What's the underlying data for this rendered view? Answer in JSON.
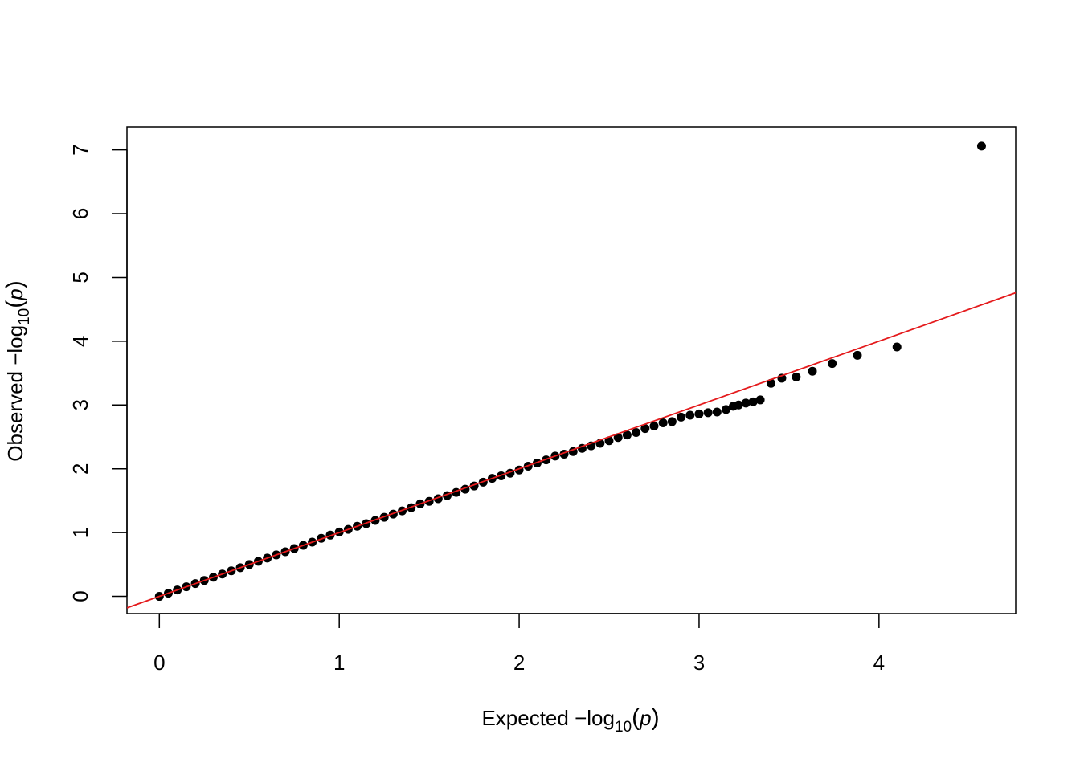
{
  "chart_data": {
    "type": "scatter",
    "title": "",
    "xlabel": {
      "prefix": "Expected  −log",
      "sub": "10",
      "paren_open": "(",
      "var": "p",
      "paren_close": ")"
    },
    "ylabel": {
      "prefix": "Observed  −log",
      "sub": "10",
      "paren_open": "(",
      "var": "p",
      "paren_close": ")"
    },
    "xlim": [
      -0.18,
      4.76
    ],
    "ylim": [
      -0.27,
      7.36
    ],
    "xticks": [
      0,
      1,
      2,
      3,
      4
    ],
    "xtick_labels": [
      "0",
      "1",
      "2",
      "3",
      "4"
    ],
    "yticks": [
      0,
      1,
      2,
      3,
      4,
      5,
      6,
      7
    ],
    "ytick_labels": [
      "0",
      "1",
      "2",
      "3",
      "4",
      "5",
      "6",
      "7"
    ],
    "grid": false,
    "reference_line": {
      "intercept": 0,
      "slope": 1,
      "color": "#e41a1c"
    },
    "point_color": "#000000",
    "points": [
      [
        0.0,
        0.0
      ],
      [
        0.05,
        0.05
      ],
      [
        0.1,
        0.1
      ],
      [
        0.15,
        0.15
      ],
      [
        0.2,
        0.2
      ],
      [
        0.25,
        0.25
      ],
      [
        0.3,
        0.3
      ],
      [
        0.35,
        0.35
      ],
      [
        0.4,
        0.4
      ],
      [
        0.45,
        0.45
      ],
      [
        0.5,
        0.5
      ],
      [
        0.55,
        0.55
      ],
      [
        0.6,
        0.6
      ],
      [
        0.65,
        0.65
      ],
      [
        0.7,
        0.7
      ],
      [
        0.75,
        0.75
      ],
      [
        0.8,
        0.8
      ],
      [
        0.85,
        0.85
      ],
      [
        0.9,
        0.91
      ],
      [
        0.95,
        0.96
      ],
      [
        1.0,
        1.01
      ],
      [
        1.05,
        1.05
      ],
      [
        1.1,
        1.1
      ],
      [
        1.15,
        1.14
      ],
      [
        1.2,
        1.19
      ],
      [
        1.25,
        1.24
      ],
      [
        1.3,
        1.29
      ],
      [
        1.35,
        1.34
      ],
      [
        1.4,
        1.39
      ],
      [
        1.45,
        1.45
      ],
      [
        1.5,
        1.49
      ],
      [
        1.55,
        1.53
      ],
      [
        1.6,
        1.58
      ],
      [
        1.65,
        1.63
      ],
      [
        1.7,
        1.68
      ],
      [
        1.75,
        1.73
      ],
      [
        1.8,
        1.79
      ],
      [
        1.85,
        1.85
      ],
      [
        1.9,
        1.89
      ],
      [
        1.95,
        1.93
      ],
      [
        2.0,
        1.98
      ],
      [
        2.05,
        2.04
      ],
      [
        2.1,
        2.09
      ],
      [
        2.15,
        2.14
      ],
      [
        2.2,
        2.2
      ],
      [
        2.25,
        2.23
      ],
      [
        2.3,
        2.27
      ],
      [
        2.35,
        2.32
      ],
      [
        2.4,
        2.36
      ],
      [
        2.45,
        2.4
      ],
      [
        2.5,
        2.44
      ],
      [
        2.55,
        2.49
      ],
      [
        2.6,
        2.53
      ],
      [
        2.65,
        2.57
      ],
      [
        2.7,
        2.63
      ],
      [
        2.75,
        2.67
      ],
      [
        2.8,
        2.72
      ],
      [
        2.85,
        2.74
      ],
      [
        2.9,
        2.81
      ],
      [
        2.95,
        2.84
      ],
      [
        3.0,
        2.86
      ],
      [
        3.05,
        2.88
      ],
      [
        3.1,
        2.89
      ],
      [
        3.15,
        2.93
      ],
      [
        3.19,
        2.98
      ],
      [
        3.22,
        3.0
      ],
      [
        3.26,
        3.03
      ],
      [
        3.3,
        3.05
      ],
      [
        3.34,
        3.08
      ],
      [
        3.4,
        3.34
      ],
      [
        3.46,
        3.42
      ],
      [
        3.54,
        3.44
      ],
      [
        3.63,
        3.53
      ],
      [
        3.74,
        3.65
      ],
      [
        3.88,
        3.78
      ],
      [
        4.1,
        3.91
      ],
      [
        4.57,
        7.06
      ]
    ]
  }
}
